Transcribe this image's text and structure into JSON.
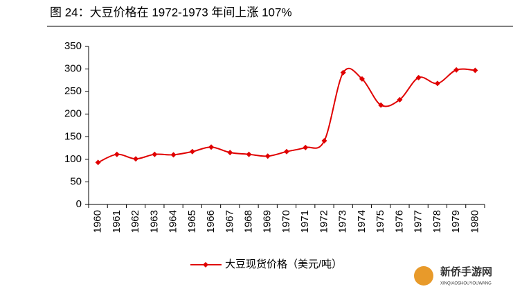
{
  "chart_data": {
    "type": "line",
    "title": "图 24：大豆价格在 1972-1973 年间上涨 107%",
    "categories": [
      "1960",
      "1961",
      "1962",
      "1963",
      "1964",
      "1965",
      "1966",
      "1967",
      "1968",
      "1969",
      "1970",
      "1971",
      "1972",
      "1973",
      "1974",
      "1975",
      "1976",
      "1977",
      "1978",
      "1979",
      "1980"
    ],
    "series": [
      {
        "name": "大豆现货价格（美元/吨）",
        "color": "#e00000",
        "values": [
          93,
          111,
          101,
          111,
          110,
          117,
          127,
          115,
          111,
          107,
          117,
          126,
          141,
          292,
          278,
          220,
          232,
          281,
          268,
          298,
          297
        ]
      }
    ],
    "ylim": [
      0,
      350
    ],
    "yticks": [
      0,
      50,
      100,
      150,
      200,
      250,
      300,
      350
    ],
    "grid": false,
    "legend": "bottom"
  },
  "watermark": {
    "name": "新侨手游网",
    "subtitle": "XINQIAOSHOUYOUWANG"
  }
}
